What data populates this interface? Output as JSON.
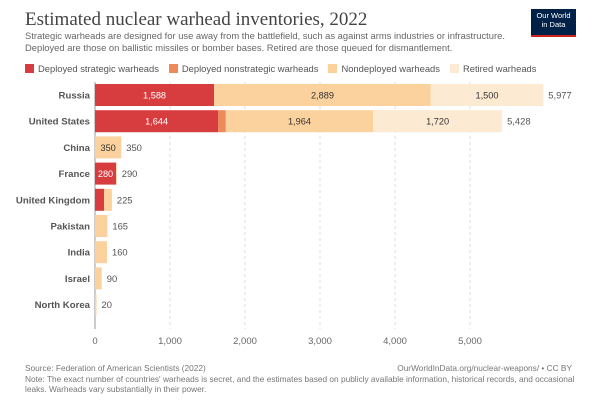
{
  "header": {
    "title": "Estimated nuclear warhead inventories, 2022",
    "subtitle": "Strategic warheads are designed for use away from the battlefield, such as against arms industries or infrastructure. Deployed are those on ballistic missiles or bomber bases. Retired are those queued for dismantlement.",
    "logo_line1": "Our World",
    "logo_line2": "in Data"
  },
  "footer": {
    "source": "Source: Federation of American Scientists (2022)",
    "url": "OurWorldInData.org/nuclear-weapons/ • CC BY",
    "note": "Note: The exact number of countries' warheads is secret, and the estimates based on publicly available information, historical records, and occasional leaks. Warheads vary substantially in their power."
  },
  "chart_data": {
    "type": "bar",
    "orientation": "horizontal",
    "stacked": true,
    "title": "Estimated nuclear warhead inventories, 2022",
    "categories": [
      "Russia",
      "United States",
      "China",
      "France",
      "United Kingdom",
      "Pakistan",
      "India",
      "Israel",
      "North Korea"
    ],
    "series": [
      {
        "name": "Deployed strategic warheads",
        "color": "#d73c3f",
        "values": [
          1588,
          1644,
          0,
          280,
          120,
          0,
          0,
          0,
          0
        ],
        "labels": [
          "1,588",
          "1,644",
          "",
          "280",
          "",
          "",
          "",
          "",
          ""
        ]
      },
      {
        "name": "Deployed nonstrategic warheads",
        "color": "#ee8a5a",
        "values": [
          0,
          100,
          0,
          0,
          0,
          0,
          0,
          0,
          0
        ],
        "labels": [
          "",
          "",
          "",
          "",
          "",
          "",
          "",
          "",
          ""
        ]
      },
      {
        "name": "Nondeployed warheads",
        "color": "#fbd29d",
        "values": [
          2889,
          1964,
          350,
          10,
          105,
          165,
          160,
          90,
          20
        ],
        "labels": [
          "2,889",
          "1,964",
          "350",
          "",
          "",
          "",
          "",
          "",
          ""
        ]
      },
      {
        "name": "Retired warheads",
        "color": "#fcebd2",
        "values": [
          1500,
          1720,
          0,
          0,
          0,
          0,
          0,
          0,
          0
        ],
        "labels": [
          "1,500",
          "1,720",
          "",
          "",
          "",
          "",
          "",
          "",
          ""
        ]
      }
    ],
    "totals": [
      5977,
      5428,
      350,
      290,
      225,
      165,
      160,
      90,
      20
    ],
    "total_labels": [
      "5,977",
      "5,428",
      "350",
      "290",
      "225",
      "165",
      "160",
      "90",
      "20"
    ],
    "xlim": [
      0,
      6000
    ],
    "xticks": [
      0,
      1000,
      2000,
      3000,
      4000,
      5000
    ],
    "xtick_labels": [
      "0",
      "1,000",
      "2,000",
      "3,000",
      "4,000",
      "5,000"
    ],
    "grid": true,
    "legend": "top-left"
  }
}
